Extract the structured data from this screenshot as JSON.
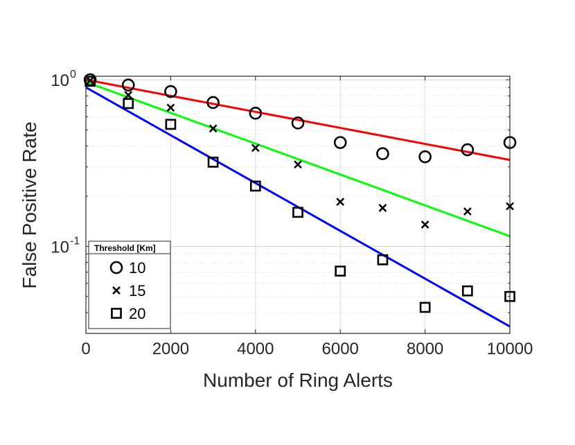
{
  "chart_data": {
    "type": "scatter",
    "title": "",
    "xlabel": "Number of Ring Alerts",
    "ylabel": "False Positive Rate",
    "xlim": [
      0,
      10000
    ],
    "ylim": [
      0.03,
      1.05
    ],
    "y_scale": "log",
    "grid": true,
    "x_ticks": [
      "0",
      "2000",
      "4000",
      "6000",
      "8000",
      "10000"
    ],
    "y_ticks": [
      {
        "value": 0.1,
        "base": "10",
        "exponent": "-1"
      },
      {
        "value": 1,
        "base": "10",
        "exponent": "0"
      }
    ],
    "legend": {
      "title": "Threshold [Km]",
      "position": "bottom-left"
    },
    "series": [
      {
        "name": "10",
        "marker": "circle",
        "color": "#000000",
        "x": [
          100,
          1000,
          2000,
          3000,
          4000,
          5000,
          6000,
          7000,
          8000,
          9000,
          10000
        ],
        "y": [
          1.0,
          0.93,
          0.85,
          0.73,
          0.63,
          0.55,
          0.42,
          0.36,
          0.345,
          0.38,
          0.42
        ],
        "fit": {
          "color": "#ff0000",
          "y_start": 1.0,
          "y_end": 0.33
        }
      },
      {
        "name": "15",
        "marker": "x",
        "color": "#000000",
        "x": [
          100,
          1000,
          2000,
          3000,
          4000,
          5000,
          6000,
          7000,
          8000,
          9000,
          10000
        ],
        "y": [
          0.99,
          0.81,
          0.68,
          0.51,
          0.39,
          0.31,
          0.185,
          0.17,
          0.135,
          0.162,
          0.174
        ],
        "fit": {
          "color": "#00ff00",
          "y_start": 0.97,
          "y_end": 0.115
        }
      },
      {
        "name": "20",
        "marker": "square",
        "color": "#000000",
        "x": [
          100,
          1000,
          2000,
          3000,
          4000,
          5000,
          6000,
          7000,
          8000,
          9000,
          10000
        ],
        "y": [
          0.98,
          0.72,
          0.54,
          0.32,
          0.23,
          0.16,
          0.071,
          0.083,
          0.043,
          0.054,
          0.05
        ],
        "fit": {
          "color": "#0000ff",
          "y_start": 0.9,
          "y_end": 0.033
        }
      }
    ]
  }
}
